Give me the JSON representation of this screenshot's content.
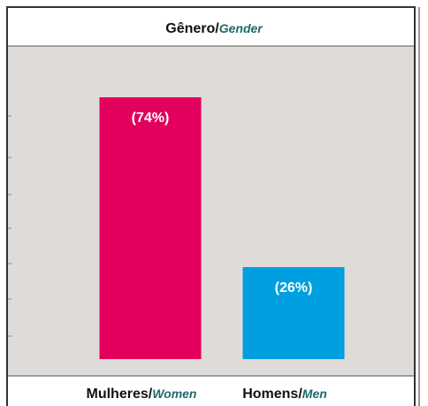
{
  "chart_data": {
    "type": "bar",
    "title": "Gênero/Gender",
    "categories": [
      "Mulheres/Women",
      "Homens/Men"
    ],
    "values": [
      74,
      26
    ],
    "value_labels": [
      "(74%)",
      "(26%)"
    ],
    "colors": [
      "#e2005c",
      "#009fdf"
    ]
  }
}
